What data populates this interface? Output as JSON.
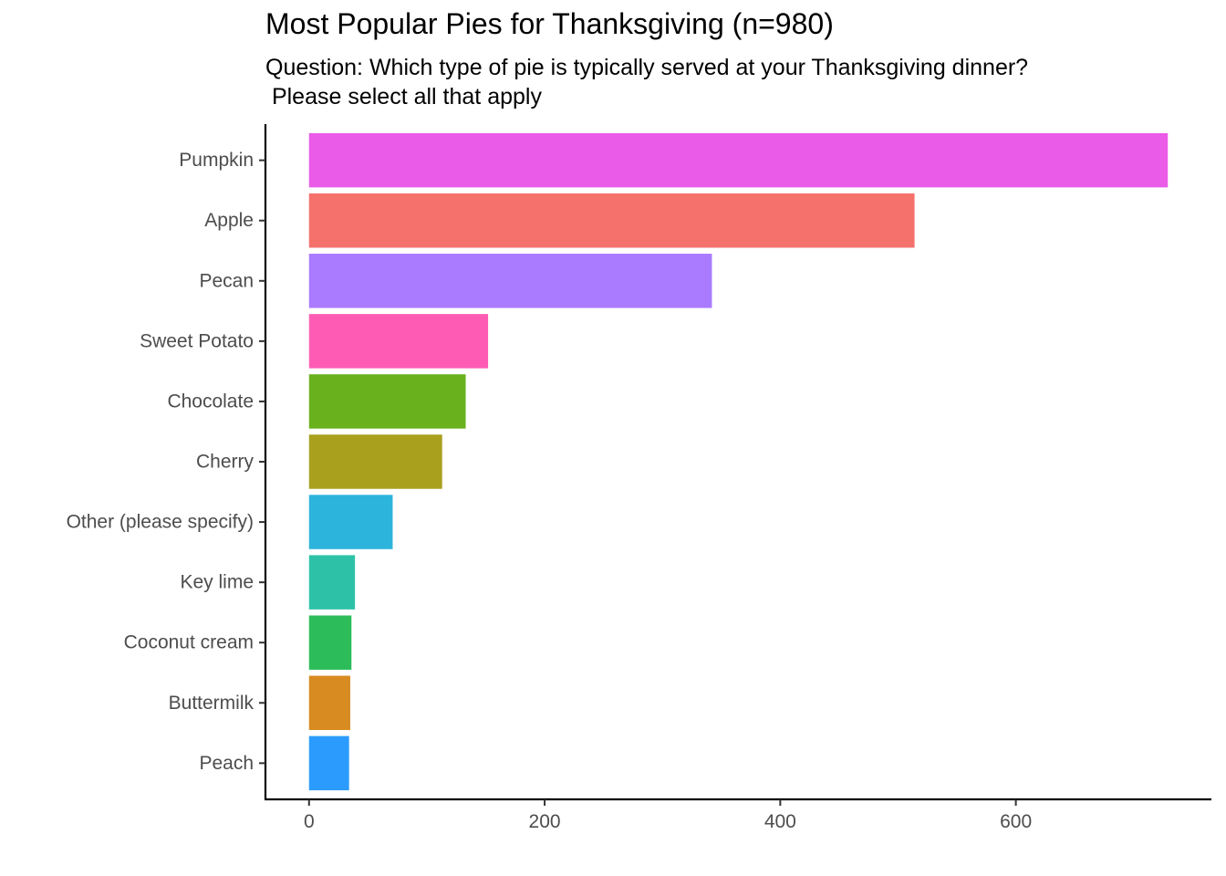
{
  "chart_data": {
    "type": "bar",
    "orientation": "horizontal",
    "title": "Most Popular Pies for Thanksgiving (n=980)",
    "subtitle_lines": [
      "Question: Which type of pie is typically served at your Thanksgiving dinner?",
      " Please select all that apply"
    ],
    "xlabel": "",
    "ylabel": "",
    "xlim": [
      -37,
      766
    ],
    "x_ticks": [
      0,
      200,
      400,
      600
    ],
    "grid": false,
    "categories": [
      "Pumpkin",
      "Apple",
      "Pecan",
      "Sweet Potato",
      "Chocolate",
      "Cherry",
      "Other (please specify)",
      "Key lime",
      "Coconut cream",
      "Buttermilk",
      "Peach"
    ],
    "values": [
      729,
      514,
      342,
      152,
      133,
      113,
      71,
      39,
      36,
      35,
      34
    ],
    "colors": [
      "#EA5BE8",
      "#F5716B",
      "#AA7AFF",
      "#FE5CB4",
      "#6AB11E",
      "#A9A01E",
      "#2DB4DC",
      "#2DC2A8",
      "#2CBD5A",
      "#D78B21",
      "#2B9CFE"
    ]
  }
}
